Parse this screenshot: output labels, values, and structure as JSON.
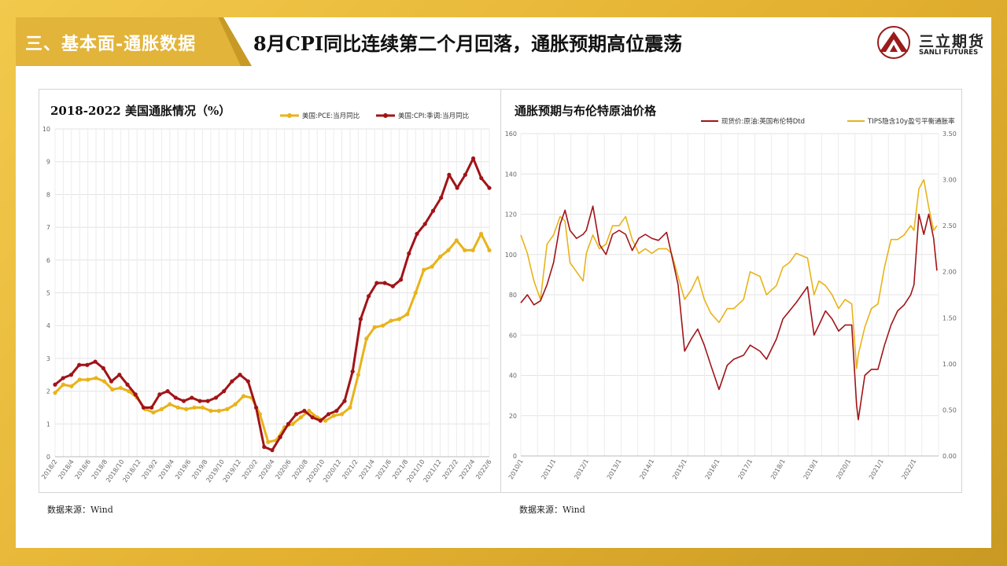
{
  "header": {
    "section_title": "三、基本面-通胀数据",
    "main_title": "8月CPI同比连续第二个月回落，通胀预期高位震荡"
  },
  "logo": {
    "cn": "三立期货",
    "en": "SANLI FUTURES"
  },
  "colors": {
    "gold": "#e8b31a",
    "dark_red": "#a01418",
    "frame": "#e3b030"
  },
  "chart_data": [
    {
      "type": "line",
      "title": "2018-2022 美国通胀情况（%）",
      "ylim": [
        0,
        10
      ],
      "yticks": [
        "0",
        "1",
        "2",
        "3",
        "4",
        "5",
        "6",
        "7",
        "8",
        "9",
        "10"
      ],
      "xticks": [
        "2018/2",
        "2018/4",
        "2018/6",
        "2018/8",
        "2018/10",
        "2018/12",
        "2019/2",
        "2019/4",
        "2019/6",
        "2019/8",
        "2019/10",
        "2019/12",
        "2020/2",
        "2020/4",
        "2020/6",
        "2020/8",
        "2020/10",
        "2020/12",
        "2021/2",
        "2021/4",
        "2021/6",
        "2021/8",
        "2021/10",
        "2021/12",
        "2022/2",
        "2022/4",
        "2022/6"
      ],
      "grid": true,
      "legend": "top-right",
      "series": [
        {
          "name": "美国:PCE:当月同比",
          "color": "#e8b31a",
          "values": [
            1.95,
            2.2,
            2.15,
            2.35,
            2.35,
            2.4,
            2.3,
            2.05,
            2.1,
            2.0,
            1.8,
            1.45,
            1.35,
            1.45,
            1.6,
            1.5,
            1.45,
            1.5,
            1.5,
            1.4,
            1.4,
            1.45,
            1.6,
            1.85,
            1.8,
            1.3,
            0.45,
            0.5,
            0.9,
            1.0,
            1.2,
            1.4,
            1.2,
            1.1,
            1.25,
            1.3,
            1.5,
            2.5,
            3.6,
            3.95,
            4.0,
            4.15,
            4.2,
            4.35,
            5.0,
            5.7,
            5.8,
            6.1,
            6.3,
            6.6,
            6.3,
            6.3,
            6.8,
            6.3
          ]
        },
        {
          "name": "美国:CPI:季调:当月同比",
          "color": "#a01418",
          "values": [
            2.2,
            2.4,
            2.5,
            2.8,
            2.8,
            2.9,
            2.7,
            2.3,
            2.5,
            2.2,
            1.9,
            1.5,
            1.5,
            1.9,
            2.0,
            1.8,
            1.7,
            1.8,
            1.7,
            1.7,
            1.8,
            2.0,
            2.3,
            2.5,
            2.3,
            1.5,
            0.3,
            0.2,
            0.6,
            1.0,
            1.3,
            1.4,
            1.2,
            1.1,
            1.3,
            1.4,
            1.7,
            2.6,
            4.2,
            4.9,
            5.3,
            5.3,
            5.2,
            5.4,
            6.2,
            6.8,
            7.1,
            7.5,
            7.9,
            8.6,
            8.2,
            8.6,
            9.1,
            8.5,
            8.2
          ]
        }
      ]
    },
    {
      "type": "line",
      "title": "通胀预期与布伦特原油价格",
      "ylim": [
        0,
        160
      ],
      "y2lim": [
        0,
        3.5
      ],
      "yticks": [
        "0",
        "20",
        "40",
        "60",
        "80",
        "100",
        "120",
        "140",
        "160"
      ],
      "y2ticks": [
        "0.00",
        "0.50",
        "1.00",
        "1.50",
        "2.00",
        "2.50",
        "3.00",
        "3.50"
      ],
      "xticks": [
        "2010/1",
        "2011/1",
        "2012/1",
        "2013/1",
        "2014/1",
        "2015/1",
        "2016/1",
        "2017/1",
        "2018/1",
        "2019/1",
        "2020/1",
        "2021/1",
        "2022/1"
      ],
      "grid": true,
      "legend": "top",
      "series": [
        {
          "name": "现货价:原油:英国布伦特Dtd",
          "color": "#a01418",
          "axis": "left",
          "x": [
            2010.0,
            2010.2,
            2010.4,
            2010.6,
            2010.8,
            2011.0,
            2011.2,
            2011.35,
            2011.5,
            2011.7,
            2011.9,
            2012.0,
            2012.2,
            2012.4,
            2012.6,
            2012.8,
            2013.0,
            2013.2,
            2013.4,
            2013.6,
            2013.8,
            2014.0,
            2014.2,
            2014.45,
            2014.6,
            2014.8,
            2015.0,
            2015.2,
            2015.4,
            2015.6,
            2015.8,
            2016.05,
            2016.3,
            2016.5,
            2016.8,
            2017.0,
            2017.3,
            2017.5,
            2017.8,
            2018.0,
            2018.2,
            2018.4,
            2018.75,
            2018.95,
            2019.1,
            2019.3,
            2019.5,
            2019.7,
            2019.9,
            2020.1,
            2020.25,
            2020.3,
            2020.5,
            2020.7,
            2020.9,
            2021.1,
            2021.3,
            2021.5,
            2021.7,
            2021.9,
            2022.0,
            2022.15,
            2022.3,
            2022.45,
            2022.6,
            2022.7
          ],
          "values": [
            76,
            80,
            75,
            77,
            85,
            96,
            115,
            122,
            112,
            108,
            110,
            112,
            124,
            105,
            100,
            110,
            112,
            110,
            102,
            108,
            110,
            108,
            107,
            111,
            100,
            85,
            52,
            58,
            63,
            55,
            45,
            33,
            45,
            48,
            50,
            55,
            52,
            48,
            58,
            68,
            72,
            76,
            84,
            60,
            65,
            72,
            68,
            62,
            65,
            65,
            25,
            18,
            40,
            43,
            43,
            55,
            65,
            72,
            75,
            80,
            85,
            120,
            110,
            120,
            108,
            92
          ]
        },
        {
          "name": "TIPS隐含10y盈亏平衡通胀率",
          "color": "#e8b31a",
          "axis": "right",
          "x": [
            2010.0,
            2010.2,
            2010.4,
            2010.6,
            2010.8,
            2011.0,
            2011.2,
            2011.35,
            2011.5,
            2011.7,
            2011.9,
            2012.0,
            2012.2,
            2012.4,
            2012.6,
            2012.8,
            2013.0,
            2013.2,
            2013.4,
            2013.6,
            2013.8,
            2014.0,
            2014.2,
            2014.45,
            2014.6,
            2014.8,
            2015.0,
            2015.2,
            2015.4,
            2015.6,
            2015.8,
            2016.05,
            2016.3,
            2016.5,
            2016.8,
            2017.0,
            2017.3,
            2017.5,
            2017.8,
            2018.0,
            2018.2,
            2018.4,
            2018.75,
            2018.95,
            2019.1,
            2019.3,
            2019.5,
            2019.7,
            2019.9,
            2020.1,
            2020.25,
            2020.3,
            2020.5,
            2020.7,
            2020.9,
            2021.1,
            2021.3,
            2021.5,
            2021.7,
            2021.9,
            2022.0,
            2022.15,
            2022.3,
            2022.45,
            2022.6,
            2022.7
          ],
          "values": [
            2.4,
            2.2,
            1.9,
            1.7,
            2.3,
            2.4,
            2.6,
            2.55,
            2.1,
            2.0,
            1.9,
            2.2,
            2.4,
            2.25,
            2.3,
            2.5,
            2.5,
            2.6,
            2.35,
            2.2,
            2.25,
            2.2,
            2.25,
            2.25,
            2.2,
            1.95,
            1.7,
            1.8,
            1.95,
            1.7,
            1.55,
            1.45,
            1.6,
            1.6,
            1.7,
            2.0,
            1.95,
            1.75,
            1.85,
            2.05,
            2.1,
            2.2,
            2.15,
            1.75,
            1.9,
            1.85,
            1.75,
            1.6,
            1.7,
            1.65,
            0.95,
            1.1,
            1.4,
            1.6,
            1.65,
            2.05,
            2.35,
            2.35,
            2.4,
            2.5,
            2.45,
            2.9,
            3.0,
            2.7,
            2.45,
            2.5
          ]
        }
      ]
    }
  ],
  "sources": {
    "left": "数据来源：Wind",
    "right": "数据来源：Wind"
  }
}
